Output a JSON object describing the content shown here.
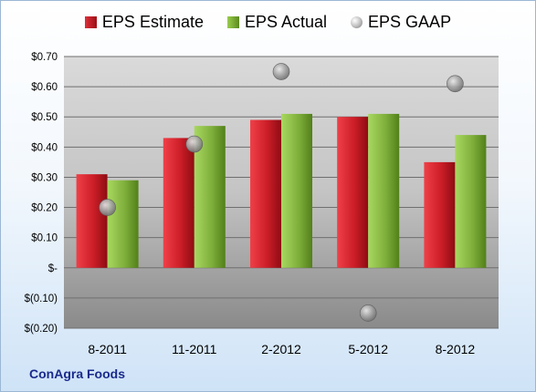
{
  "chart_data": {
    "type": "bar",
    "categories": [
      "8-2011",
      "11-2011",
      "2-2012",
      "5-2012",
      "8-2012"
    ],
    "series": [
      {
        "name": "EPS Estimate",
        "kind": "bar",
        "color": "#c8202a",
        "values": [
          0.31,
          0.43,
          0.49,
          0.5,
          0.35
        ]
      },
      {
        "name": "EPS Actual",
        "kind": "bar",
        "color": "#7fae3a",
        "values": [
          0.29,
          0.47,
          0.51,
          0.51,
          0.44
        ]
      },
      {
        "name": "EPS GAAP",
        "kind": "marker",
        "color": "#a0a0a0",
        "values": [
          0.2,
          0.41,
          0.65,
          -0.15,
          0.61
        ]
      }
    ],
    "ylim": [
      -0.2,
      0.7
    ],
    "yticks": [
      0.7,
      0.6,
      0.5,
      0.4,
      0.3,
      0.2,
      0.1,
      0.0,
      -0.1,
      -0.2
    ],
    "ytick_labels": [
      "$0.70",
      "$0.60",
      "$0.50",
      "$0.40",
      "$0.30",
      "$0.20",
      "$0.10",
      "$-",
      "$(0.10)",
      "$(0.20)"
    ],
    "grid": true,
    "legend_position": "top"
  },
  "company": "ConAgra Foods"
}
